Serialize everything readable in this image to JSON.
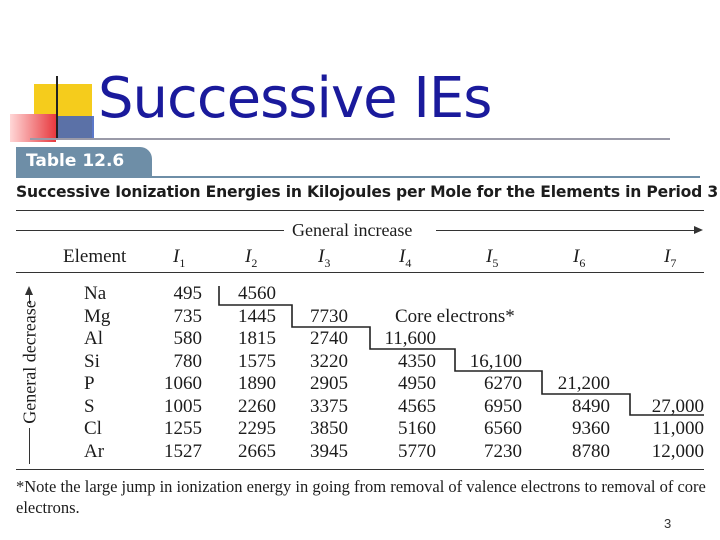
{
  "slide": {
    "title": "Successive IEs",
    "page_number": "3"
  },
  "table": {
    "tab_label": "Table 12.6",
    "caption": "Successive Ionization Energies in Kilojoules per Mole for the Elements in Period 3",
    "general_increase": "General increase",
    "general_decrease": "General decrease",
    "header": {
      "element": "Element",
      "I": "I",
      "subs": [
        "1",
        "2",
        "3",
        "4",
        "5",
        "6",
        "7"
      ]
    },
    "rows": [
      {
        "element": "Na",
        "values": [
          "495",
          "4560"
        ]
      },
      {
        "element": "Mg",
        "values": [
          "735",
          "1445",
          "7730"
        ]
      },
      {
        "element": "Al",
        "values": [
          "580",
          "1815",
          "2740",
          "11,600"
        ]
      },
      {
        "element": "Si",
        "values": [
          "780",
          "1575",
          "3220",
          "4350",
          "16,100"
        ]
      },
      {
        "element": "P",
        "values": [
          "1060",
          "1890",
          "2905",
          "4950",
          "6270",
          "21,200"
        ]
      },
      {
        "element": "S",
        "values": [
          "1005",
          "2260",
          "3375",
          "4565",
          "6950",
          "8490",
          "27,000"
        ]
      },
      {
        "element": "Cl",
        "values": [
          "1255",
          "2295",
          "3850",
          "5160",
          "6560",
          "9360",
          "11,000"
        ]
      },
      {
        "element": "Ar",
        "values": [
          "1527",
          "2665",
          "3945",
          "5770",
          "7230",
          "8780",
          "12,000"
        ]
      }
    ],
    "core_label": "Core electrons*",
    "footnote": "*Note the large jump in ionization energy in going from removal of valence electrons to removal of core electrons."
  },
  "colors": {
    "title": "#1a1a9c",
    "tab": "#6e8ea7",
    "deco_yellow": "#f5cc1c",
    "deco_red": "#e7393e",
    "deco_blue": "#3d55b5"
  }
}
